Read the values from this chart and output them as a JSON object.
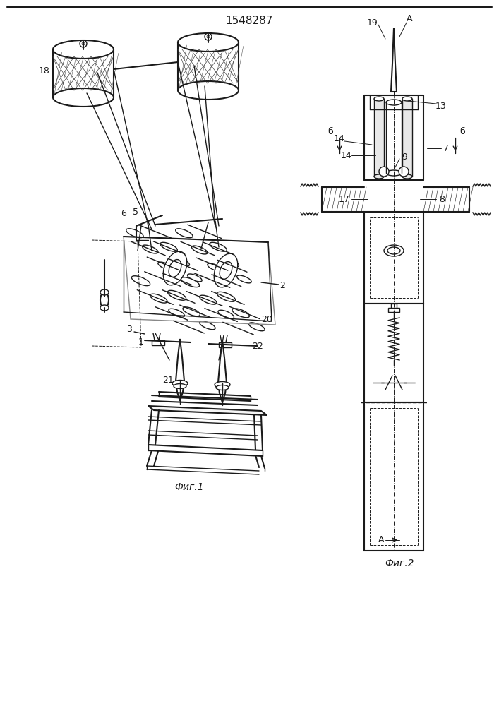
{
  "title": "1548287",
  "fig1_label": "Фиг.1",
  "fig2_label": "Фиг.2",
  "bg_color": "#ffffff",
  "line_color": "#1a1a1a"
}
